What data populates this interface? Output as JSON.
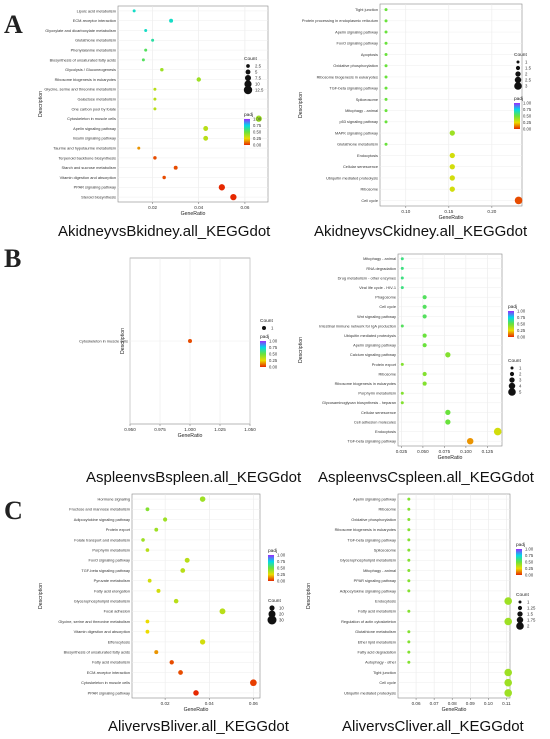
{
  "panel_letters": [
    "A",
    "B",
    "C"
  ],
  "colorbar_title": "padj",
  "size_legend_title": "Count",
  "chart_data": [
    {
      "type": "scatter",
      "title": "AkidneyvsBkidney.all_KEGGdot",
      "xlabel": "GeneRatio",
      "ylabel": "Description",
      "xlim": [
        0.005,
        0.07
      ],
      "xticks": [
        0.02,
        0.04,
        0.06
      ],
      "padj_ticks": [
        0.0,
        0.25,
        0.5,
        0.75,
        1.0
      ],
      "count_legend": [
        2.5,
        5.0,
        7.5,
        10.0,
        12.5
      ],
      "points": [
        {
          "term": "Lipoic acid metabolism",
          "x": 0.012,
          "count": 1,
          "padj": 0.7
        },
        {
          "term": "ECM-receptor interaction",
          "x": 0.028,
          "count": 3,
          "padj": 0.7
        },
        {
          "term": "Glyoxylate and dicarboxylate metabolism",
          "x": 0.017,
          "count": 1,
          "padj": 0.7
        },
        {
          "term": "Glutathione metabolism",
          "x": 0.02,
          "count": 1,
          "padj": 0.65
        },
        {
          "term": "Phenylalanine metabolism",
          "x": 0.017,
          "count": 1,
          "padj": 0.55
        },
        {
          "term": "Biosynthesis of unsaturated fatty acids",
          "x": 0.016,
          "count": 1,
          "padj": 0.55
        },
        {
          "term": "Glycolysis / Gluconeogenesis",
          "x": 0.024,
          "count": 2,
          "padj": 0.4
        },
        {
          "term": "Ribosome biogenesis in eukaryotes",
          "x": 0.04,
          "count": 4,
          "padj": 0.4
        },
        {
          "term": "Glycine, serine and threonine metabolism",
          "x": 0.021,
          "count": 1,
          "padj": 0.35
        },
        {
          "term": "Galactose metabolism",
          "x": 0.021,
          "count": 1,
          "padj": 0.35
        },
        {
          "term": "One carbon pool by folate",
          "x": 0.021,
          "count": 1,
          "padj": 0.35
        },
        {
          "term": "Cytoskeleton in muscle cells",
          "x": 0.066,
          "count": 8,
          "padj": 0.4
        },
        {
          "term": "Apelin signaling pathway",
          "x": 0.043,
          "count": 5,
          "padj": 0.35
        },
        {
          "term": "Insulin signaling pathway",
          "x": 0.043,
          "count": 5,
          "padj": 0.35
        },
        {
          "term": "Taurine and hypotaurine metabolism",
          "x": 0.014,
          "count": 1,
          "padj": 0.15
        },
        {
          "term": "Terpenoid backbone biosynthesis",
          "x": 0.021,
          "count": 2,
          "padj": 0.05
        },
        {
          "term": "Starch and sucrose metabolism",
          "x": 0.03,
          "count": 3,
          "padj": 0.05
        },
        {
          "term": "Vitamin digestion and absorption",
          "x": 0.025,
          "count": 2,
          "padj": 0.05
        },
        {
          "term": "PPAR signaling pathway",
          "x": 0.05,
          "count": 8,
          "padj": 0.0
        },
        {
          "term": "Steroid biosynthesis",
          "x": 0.055,
          "count": 8,
          "padj": 0.0
        }
      ]
    },
    {
      "type": "scatter",
      "title": "AkidneyvsCkidney.all_KEGGdot",
      "xlabel": "GeneRatio",
      "ylabel": "Description",
      "xlim": [
        0.07,
        0.235
      ],
      "xticks": [
        0.1,
        0.15,
        0.2
      ],
      "padj_ticks": [
        0.0,
        0.25,
        0.5,
        0.75,
        1.0
      ],
      "count_legend": [
        1.0,
        1.5,
        2.0,
        2.5,
        3.0
      ],
      "points": [
        {
          "term": "Tight junction",
          "x": 0.077,
          "count": 1,
          "padj": 0.5
        },
        {
          "term": "Protein processing in endoplasmic reticulum",
          "x": 0.077,
          "count": 1,
          "padj": 0.5
        },
        {
          "term": "Apelin signaling pathway",
          "x": 0.077,
          "count": 1,
          "padj": 0.5
        },
        {
          "term": "FoxO signaling pathway",
          "x": 0.077,
          "count": 1,
          "padj": 0.5
        },
        {
          "term": "Apoptosis",
          "x": 0.077,
          "count": 1,
          "padj": 0.5
        },
        {
          "term": "Oxidative phosphorylation",
          "x": 0.077,
          "count": 1,
          "padj": 0.5
        },
        {
          "term": "Ribosome biogenesis in eukaryotes",
          "x": 0.077,
          "count": 1,
          "padj": 0.5
        },
        {
          "term": "TGF-beta signaling pathway",
          "x": 0.077,
          "count": 1,
          "padj": 0.5
        },
        {
          "term": "Spliceosome",
          "x": 0.077,
          "count": 1,
          "padj": 0.5
        },
        {
          "term": "Mitophagy - animal",
          "x": 0.077,
          "count": 1,
          "padj": 0.5
        },
        {
          "term": "p53 signaling pathway",
          "x": 0.077,
          "count": 1,
          "padj": 0.5
        },
        {
          "term": "MAPK signaling pathway",
          "x": 0.154,
          "count": 2,
          "padj": 0.4
        },
        {
          "term": "Glutathione metabolism",
          "x": 0.077,
          "count": 1,
          "padj": 0.5
        },
        {
          "term": "Endocytosis",
          "x": 0.154,
          "count": 2,
          "padj": 0.3
        },
        {
          "term": "Cellular senescence",
          "x": 0.154,
          "count": 2,
          "padj": 0.3
        },
        {
          "term": "Ubiquitin mediated proteolysis",
          "x": 0.154,
          "count": 2,
          "padj": 0.3
        },
        {
          "term": "Ribosome",
          "x": 0.154,
          "count": 2,
          "padj": 0.3
        },
        {
          "term": "Cell cycle",
          "x": 0.231,
          "count": 3,
          "padj": 0.05
        }
      ]
    },
    {
      "type": "scatter",
      "title": "AspleenvsBspleen.all_KEGGdot",
      "xlabel": "GeneRatio",
      "ylabel": "Description",
      "xlim": [
        0.95,
        1.05
      ],
      "xticks": [
        0.95,
        0.975,
        1.0,
        1.025,
        1.05
      ],
      "padj_ticks": [
        0.0,
        0.25,
        0.5,
        0.75,
        1.0
      ],
      "count_legend": [
        1
      ],
      "points": [
        {
          "term": "Cytoskeleton in muscle cells",
          "x": 1.0,
          "count": 1,
          "padj": 0.05
        }
      ]
    },
    {
      "type": "scatter",
      "title": "AspleenvsCspleen.all_KEGGdot",
      "xlabel": "GeneRatio",
      "ylabel": "Description",
      "xlim": [
        0.021,
        0.142
      ],
      "xticks": [
        0.025,
        0.05,
        0.075,
        0.1,
        0.125
      ],
      "padj_ticks": [
        0.0,
        0.25,
        0.5,
        0.75,
        1.0
      ],
      "count_legend": [
        1,
        2,
        3,
        4,
        5
      ],
      "points": [
        {
          "term": "Mitophagy - animal",
          "x": 0.026,
          "count": 1,
          "padj": 0.6
        },
        {
          "term": "RNA degradation",
          "x": 0.026,
          "count": 1,
          "padj": 0.6
        },
        {
          "term": "Drug metabolism - other enzymes",
          "x": 0.026,
          "count": 1,
          "padj": 0.6
        },
        {
          "term": "Viral life cycle - HIV-1",
          "x": 0.026,
          "count": 1,
          "padj": 0.6
        },
        {
          "term": "Phagosome",
          "x": 0.052,
          "count": 2,
          "padj": 0.55
        },
        {
          "term": "Cell cycle",
          "x": 0.052,
          "count": 2,
          "padj": 0.55
        },
        {
          "term": "Wnt signaling pathway",
          "x": 0.052,
          "count": 2,
          "padj": 0.55
        },
        {
          "term": "Intestinal immune network for IgA production",
          "x": 0.026,
          "count": 1,
          "padj": 0.55
        },
        {
          "term": "Ubiquitin mediated proteolysis",
          "x": 0.052,
          "count": 2,
          "padj": 0.5
        },
        {
          "term": "Apelin signaling pathway",
          "x": 0.052,
          "count": 2,
          "padj": 0.5
        },
        {
          "term": "Calcium signaling pathway",
          "x": 0.079,
          "count": 3,
          "padj": 0.45
        },
        {
          "term": "Protein export",
          "x": 0.026,
          "count": 1,
          "padj": 0.45
        },
        {
          "term": "Ribosome",
          "x": 0.052,
          "count": 2,
          "padj": 0.45
        },
        {
          "term": "Ribosome biogenesis in eukaryotes",
          "x": 0.052,
          "count": 2,
          "padj": 0.45
        },
        {
          "term": "Porphyrin metabolism",
          "x": 0.026,
          "count": 1,
          "padj": 0.45
        },
        {
          "term": "Glycosaminoglycan biosynthesis - heparan",
          "x": 0.026,
          "count": 1,
          "padj": 0.45
        },
        {
          "term": "Cellular senescence",
          "x": 0.079,
          "count": 3,
          "padj": 0.5
        },
        {
          "term": "Cell adhesion molecules",
          "x": 0.079,
          "count": 3,
          "padj": 0.5
        },
        {
          "term": "Endocytosis",
          "x": 0.137,
          "count": 5,
          "padj": 0.3
        },
        {
          "term": "TGF-beta signaling pathway",
          "x": 0.105,
          "count": 4,
          "padj": 0.15
        }
      ]
    },
    {
      "type": "scatter",
      "title": "AlivervsBliver.all_KEGGdot",
      "xlabel": "GeneRatio",
      "ylabel": "Description",
      "xlim": [
        0.005,
        0.063
      ],
      "xticks": [
        0.02,
        0.04,
        0.06
      ],
      "padj_ticks": [
        0.0,
        0.25,
        0.5,
        0.75,
        1.0
      ],
      "count_legend": [
        10,
        20,
        30
      ],
      "points": [
        {
          "term": "Hormone signaling",
          "x": 0.037,
          "count": 12,
          "padj": 0.4
        },
        {
          "term": "Fructose and mannose metabolism",
          "x": 0.012,
          "count": 3,
          "padj": 0.45
        },
        {
          "term": "Adipocytokine signaling pathway",
          "x": 0.02,
          "count": 5,
          "padj": 0.4
        },
        {
          "term": "Protein export",
          "x": 0.016,
          "count": 3,
          "padj": 0.4
        },
        {
          "term": "Folate transport and metabolism",
          "x": 0.01,
          "count": 2,
          "padj": 0.4
        },
        {
          "term": "Porphyrin metabolism",
          "x": 0.012,
          "count": 2,
          "padj": 0.35
        },
        {
          "term": "FoxO signaling pathway",
          "x": 0.03,
          "count": 9,
          "padj": 0.35
        },
        {
          "term": "TGF-beta signaling pathway",
          "x": 0.028,
          "count": 8,
          "padj": 0.35
        },
        {
          "term": "Pyruvate metabolism",
          "x": 0.013,
          "count": 3,
          "padj": 0.3
        },
        {
          "term": "Fatty acid elongation",
          "x": 0.017,
          "count": 4,
          "padj": 0.3
        },
        {
          "term": "Glycerophospholipid metabolism",
          "x": 0.025,
          "count": 7,
          "padj": 0.35
        },
        {
          "term": "Focal adhesion",
          "x": 0.046,
          "count": 14,
          "padj": 0.35
        },
        {
          "term": "Glycine, serine and threonine metabolism",
          "x": 0.012,
          "count": 3,
          "padj": 0.25
        },
        {
          "term": "Vitamin digestion and absorption",
          "x": 0.012,
          "count": 3,
          "padj": 0.25
        },
        {
          "term": "Efferocytosis",
          "x": 0.037,
          "count": 11,
          "padj": 0.3
        },
        {
          "term": "Biosynthesis of unsaturated fatty acids",
          "x": 0.016,
          "count": 4,
          "padj": 0.15
        },
        {
          "term": "Fatty acid metabolism",
          "x": 0.023,
          "count": 6,
          "padj": 0.05
        },
        {
          "term": "ECM-receptor interaction",
          "x": 0.027,
          "count": 8,
          "padj": 0.05
        },
        {
          "term": "Cytoskeleton in muscle cells",
          "x": 0.06,
          "count": 18,
          "padj": 0.03
        },
        {
          "term": "PPAR signaling pathway",
          "x": 0.034,
          "count": 12,
          "padj": 0.0
        }
      ]
    },
    {
      "type": "scatter",
      "title": "AlivervsCliver.all_KEGGdot",
      "xlabel": "GeneRatio",
      "ylabel": "Description",
      "xlim": [
        0.05,
        0.112
      ],
      "xticks": [
        0.06,
        0.07,
        0.08,
        0.09,
        0.1,
        0.11
      ],
      "padj_ticks": [
        0.0,
        0.25,
        0.5,
        0.75,
        1.0
      ],
      "count_legend": [
        1.0,
        1.25,
        1.5,
        1.75,
        2.0
      ],
      "points": [
        {
          "term": "Apelin signaling pathway",
          "x": 0.056,
          "count": 1,
          "padj": 0.45
        },
        {
          "term": "Ribosome",
          "x": 0.056,
          "count": 1,
          "padj": 0.45
        },
        {
          "term": "Oxidative phosphorylation",
          "x": 0.056,
          "count": 1,
          "padj": 0.45
        },
        {
          "term": "Ribosome biogenesis in eukaryotes",
          "x": 0.056,
          "count": 1,
          "padj": 0.45
        },
        {
          "term": "TGF-beta signaling pathway",
          "x": 0.056,
          "count": 1,
          "padj": 0.45
        },
        {
          "term": "Spliceosome",
          "x": 0.056,
          "count": 1,
          "padj": 0.45
        },
        {
          "term": "Glycerophospholipid metabolism",
          "x": 0.056,
          "count": 1,
          "padj": 0.45
        },
        {
          "term": "Mitophagy - animal",
          "x": 0.056,
          "count": 1,
          "padj": 0.45
        },
        {
          "term": "PPAR signaling pathway",
          "x": 0.056,
          "count": 1,
          "padj": 0.45
        },
        {
          "term": "Adipocytokine signaling pathway",
          "x": 0.056,
          "count": 1,
          "padj": 0.45
        },
        {
          "term": "Endocytosis",
          "x": 0.111,
          "count": 2,
          "padj": 0.4
        },
        {
          "term": "Fatty acid metabolism",
          "x": 0.056,
          "count": 1,
          "padj": 0.45
        },
        {
          "term": "Regulation of actin cytoskeleton",
          "x": 0.111,
          "count": 2,
          "padj": 0.4
        },
        {
          "term": "Glutathione metabolism",
          "x": 0.056,
          "count": 1,
          "padj": 0.45
        },
        {
          "term": "Ether lipid metabolism",
          "x": 0.056,
          "count": 1,
          "padj": 0.45
        },
        {
          "term": "Fatty acid degradation",
          "x": 0.056,
          "count": 1,
          "padj": 0.45
        },
        {
          "term": "Autophagy - other",
          "x": 0.056,
          "count": 1,
          "padj": 0.45
        },
        {
          "term": "Tight junction",
          "x": 0.111,
          "count": 2,
          "padj": 0.4
        },
        {
          "term": "Cell cycle",
          "x": 0.111,
          "count": 2,
          "padj": 0.4
        },
        {
          "term": "Ubiquitin mediated proteolysis",
          "x": 0.111,
          "count": 2,
          "padj": 0.4
        }
      ]
    }
  ]
}
